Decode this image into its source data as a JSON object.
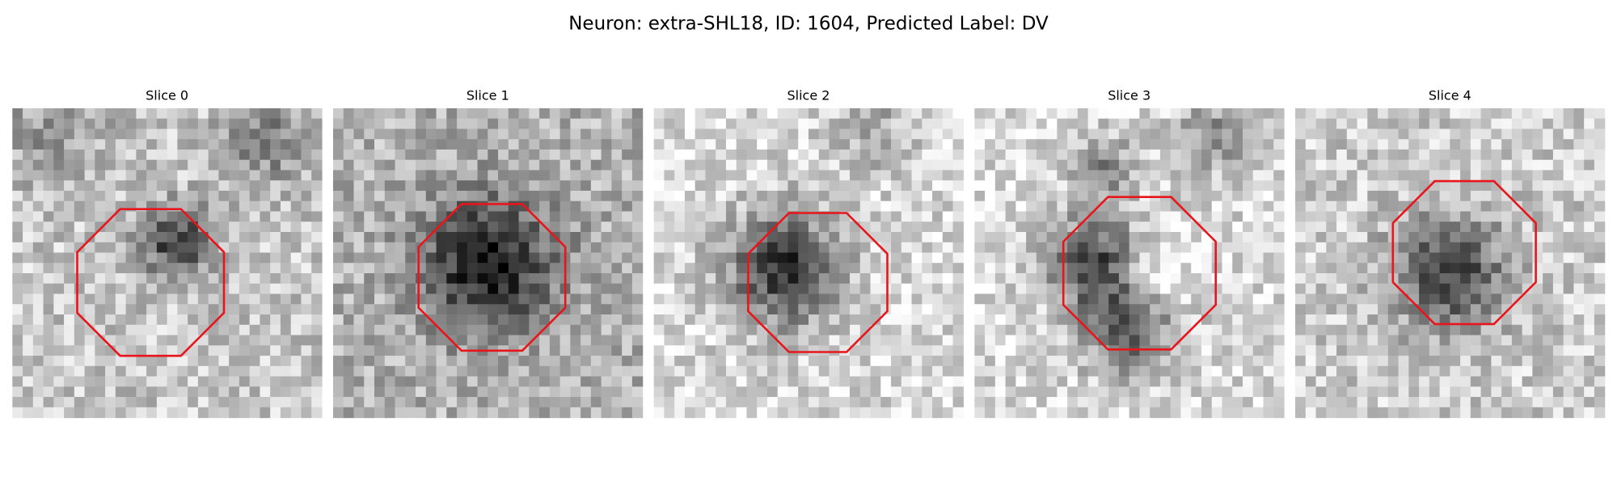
{
  "figure": {
    "title": "Neuron: extra-SHL18, ID: 1604, Predicted Label: DV",
    "panels": [
      {
        "title": "Slice 0"
      },
      {
        "title": "Slice 1"
      },
      {
        "title": "Slice 2"
      },
      {
        "title": "Slice 3"
      },
      {
        "title": "Slice 4"
      }
    ]
  }
}
